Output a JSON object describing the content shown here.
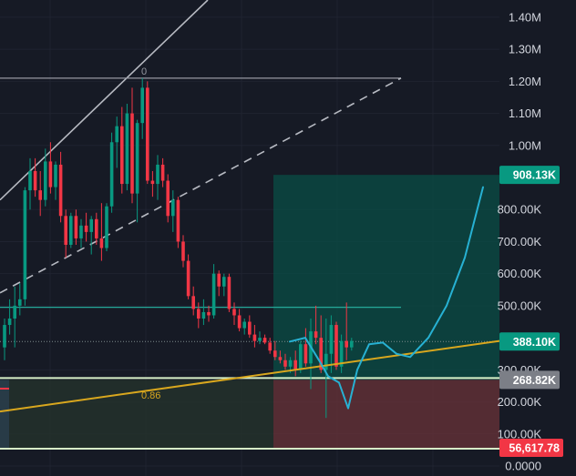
{
  "chart_data": {
    "type": "candlestick",
    "y_axis": {
      "scale": "linear",
      "ylim": [
        0,
        1450000
      ],
      "ticks": [
        {
          "value": 1400000,
          "label": "1.40M"
        },
        {
          "value": 1300000,
          "label": "1.30M"
        },
        {
          "value": 1200000,
          "label": "1.20M"
        },
        {
          "value": 1100000,
          "label": "1.10M"
        },
        {
          "value": 1000000,
          "label": "1.00M"
        },
        {
          "value": 800000,
          "label": "800.00K"
        },
        {
          "value": 700000,
          "label": "700.00K"
        },
        {
          "value": 600000,
          "label": "600.00K"
        },
        {
          "value": 500000,
          "label": "500.00K"
        },
        {
          "value": 300000,
          "label": "300.00K"
        },
        {
          "value": 200000,
          "label": "200.00K"
        },
        {
          "value": 100000,
          "label": "100.00K"
        },
        {
          "value": 0,
          "label": "0.0000"
        }
      ]
    },
    "price_badges": [
      {
        "value": 908130,
        "label": "908.13K",
        "color": "#089981"
      },
      {
        "value": 388100,
        "label": "388.10K",
        "color": "#089981"
      },
      {
        "value": 268820,
        "label": "268.82K",
        "color": "#7c7f87"
      },
      {
        "value": 56617.78,
        "label": "56,617.78",
        "color": "#f23645"
      }
    ],
    "candles": [
      [
        370000.0,
        460000.0,
        330000.0,
        440000.0
      ],
      [
        440000.0,
        520000.0,
        410000.0,
        460000.0
      ],
      [
        460000.0,
        560000.0,
        370000.0,
        500000.0
      ],
      [
        500000.0,
        570000.0,
        470000.0,
        520000.0
      ],
      [
        520000.0,
        870000.0,
        500000.0,
        860000.0
      ],
      [
        860000.0,
        960000.0,
        800000.0,
        920000.0
      ],
      [
        920000.0,
        960000.0,
        840000.0,
        860000.0
      ],
      [
        860000.0,
        920000.0,
        780000.0,
        830000.0
      ],
      [
        830000.0,
        990000.0,
        810000.0,
        950000.0
      ],
      [
        950000.0,
        1010000.0,
        850000.0,
        870000.0
      ],
      [
        870000.0,
        950000.0,
        830000.0,
        940000.0
      ],
      [
        940000.0,
        980000.0,
        760000.0,
        780000.0
      ],
      [
        780000.0,
        800000.0,
        650000.0,
        690000.0
      ],
      [
        690000.0,
        790000.0,
        680000.0,
        780000.0
      ],
      [
        780000.0,
        800000.0,
        690000.0,
        710000.0
      ],
      [
        710000.0,
        770000.0,
        680000.0,
        750000.0
      ],
      [
        750000.0,
        790000.0,
        700000.0,
        730000.0
      ],
      [
        730000.0,
        780000.0,
        660000.0,
        770000.0
      ],
      [
        770000.0,
        790000.0,
        690000.0,
        710000.0
      ],
      [
        710000.0,
        820000.0,
        640000.0,
        680000.0
      ],
      [
        680000.0,
        820000.0,
        670000.0,
        810000.0
      ],
      [
        810000.0,
        1040000.0,
        790000.0,
        1010000.0
      ],
      [
        1010000.0,
        1090000.0,
        930000.0,
        1060000.0
      ],
      [
        1060000.0,
        1120000.0,
        850000.0,
        880000.0
      ],
      [
        880000.0,
        1130000.0,
        860000.0,
        1100000.0
      ],
      [
        1100000.0,
        1180000.0,
        820000.0,
        850000.0
      ],
      [
        850000.0,
        1080000.0,
        760000.0,
        1070000.0
      ],
      [
        1070000.0,
        1210000.0,
        1020000.0,
        1180000.0
      ],
      [
        1180000.0,
        1200000.0,
        880000.0,
        890000.0
      ],
      [
        890000.0,
        920000.0,
        840000.0,
        880000.0
      ],
      [
        880000.0,
        970000.0,
        830000.0,
        940000.0
      ],
      [
        940000.0,
        960000.0,
        870000.0,
        890000.0
      ],
      [
        890000.0,
        910000.0,
        760000.0,
        780000.0
      ],
      [
        780000.0,
        860000.0,
        730000.0,
        830000.0
      ],
      [
        830000.0,
        840000.0,
        680000.0,
        700000.0
      ],
      [
        700000.0,
        720000.0,
        620000.0,
        640000.0
      ],
      [
        640000.0,
        660000.0,
        520000.0,
        530000.0
      ],
      [
        530000.0,
        560000.0,
        470000.0,
        490000.0
      ],
      [
        490000.0,
        510000.0,
        430000.0,
        460000.0
      ],
      [
        460000.0,
        520000.0,
        440000.0,
        480000.0
      ],
      [
        480000.0,
        500000.0,
        450000.0,
        470000.0
      ],
      [
        470000.0,
        630000.0,
        460000.0,
        600000.0
      ],
      [
        600000.0,
        610000.0,
        530000.0,
        560000.0
      ],
      [
        560000.0,
        600000.0,
        530000.0,
        590000.0
      ],
      [
        590000.0,
        600000.0,
        480000.0,
        490000.0
      ],
      [
        490000.0,
        510000.0,
        440000.0,
        470000.0
      ],
      [
        470000.0,
        490000.0,
        420000.0,
        430000.0
      ],
      [
        430000.0,
        460000.0,
        410000.0,
        450000.0
      ],
      [
        450000.0,
        470000.0,
        400000.0,
        410000.0
      ],
      [
        410000.0,
        440000.0,
        370000.0,
        390000.0
      ],
      [
        390000.0,
        420000.0,
        380000.0,
        400000.0
      ],
      [
        400000.0,
        410000.0,
        380000.0,
        385000.0
      ],
      [
        385000.0,
        400000.0,
        350000.0,
        360000.0
      ],
      [
        360000.0,
        390000.0,
        330000.0,
        340000.0
      ],
      [
        340000.0,
        360000.0,
        320000.0,
        330000.0
      ],
      [
        330000.0,
        350000.0,
        300000.0,
        310000.0
      ],
      [
        310000.0,
        340000.0,
        290000.0,
        330000.0
      ],
      [
        330000.0,
        360000.0,
        280000.0,
        300000.0
      ],
      [
        300000.0,
        390000.0,
        290000.0,
        380000.0
      ],
      [
        380000.0,
        430000.0,
        310000.0,
        320000.0
      ],
      [
        320000.0,
        460000.0,
        240000.0,
        420000.0
      ],
      [
        420000.0,
        500000.0,
        380000.0,
        400000.0
      ],
      [
        400000.0,
        470000.0,
        290000.0,
        300000.0
      ],
      [
        300000.0,
        460000.0,
        150000.0,
        350000.0
      ],
      [
        350000.0,
        470000.0,
        290000.0,
        440000.0
      ],
      [
        440000.0,
        450000.0,
        300000.0,
        310000.0
      ],
      [
        310000.0,
        410000.0,
        290000.0,
        390000.0
      ],
      [
        390000.0,
        510000.0,
        330000.0,
        370000.0
      ],
      [
        370000.0,
        400000.0,
        360000.0,
        390000.0
      ]
    ],
    "indicators": {
      "price_line_value": 495000,
      "last_price_dotted_value": 388100,
      "gold_line_label": "0.86",
      "gold_line_from": 170000,
      "gold_line_to": 390000,
      "level_line_label": "0",
      "level_line_value": 1210000,
      "target_zone": [
        268820,
        908130
      ],
      "stop_zone": [
        56617.78,
        268820
      ],
      "projection_path": [
        388100,
        400000,
        330000,
        280000,
        260000,
        180000,
        300000,
        380000,
        385000,
        350000,
        340000,
        400000,
        500000,
        650000,
        870000
      ]
    },
    "colors": {
      "up": "#089981",
      "down": "#f23645",
      "background": "#161a25",
      "gold": "#d9a71e",
      "projection": "#27b1d3"
    }
  }
}
